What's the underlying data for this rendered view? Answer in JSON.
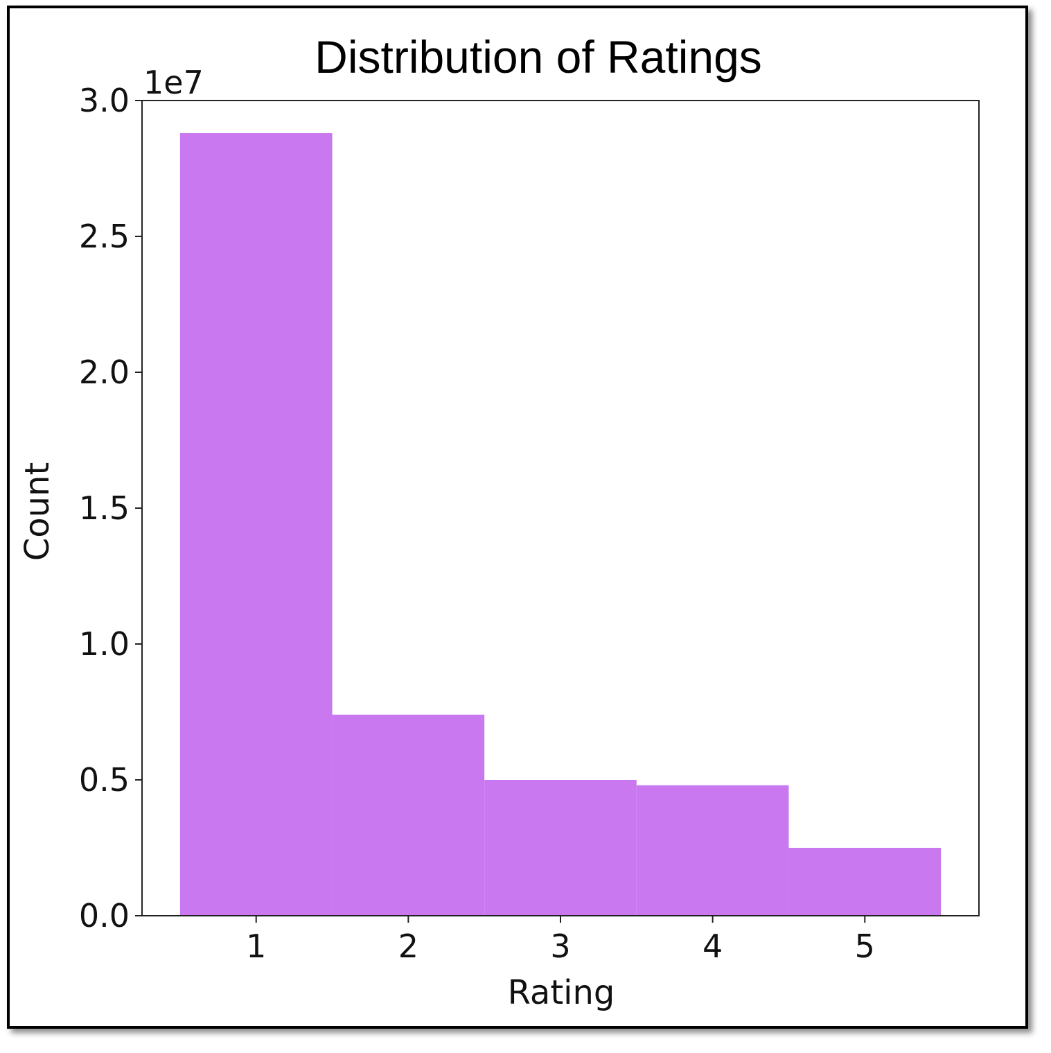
{
  "chart_data": {
    "type": "bar",
    "title": "Distribution of Ratings",
    "xlabel": "Rating",
    "ylabel": "Count",
    "y_offset_label": "1e7",
    "categories": [
      "1",
      "2",
      "3",
      "4",
      "5"
    ],
    "values": [
      28800000,
      7400000,
      5000000,
      4800000,
      2500000
    ],
    "ylim": [
      0,
      30000000
    ],
    "yticks": [
      0,
      5000000,
      10000000,
      15000000,
      20000000,
      25000000,
      30000000
    ],
    "ytick_labels": [
      "0.0",
      "0.5",
      "1.0",
      "1.5",
      "2.0",
      "2.5",
      "3.0"
    ],
    "xticks": [
      1,
      2,
      3,
      4,
      5
    ],
    "xtick_labels": [
      "1",
      "2",
      "3",
      "4",
      "5"
    ],
    "xlim": [
      0.25,
      5.75
    ],
    "bar_color": "#c978f0",
    "grid": false,
    "legend": "none"
  }
}
